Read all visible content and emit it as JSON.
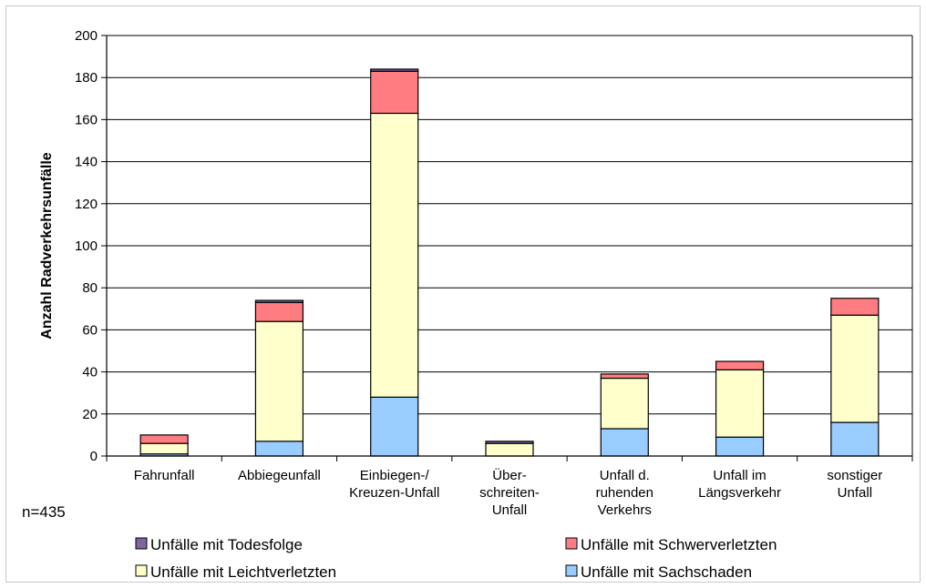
{
  "chart_data": {
    "type": "bar",
    "stacked": true,
    "title": "",
    "xlabel": "",
    "ylabel": "Anzahl Radverkehrsunfälle",
    "ylim": [
      0,
      200
    ],
    "yticks": [
      0,
      20,
      40,
      60,
      80,
      100,
      120,
      140,
      160,
      180,
      200
    ],
    "grid": true,
    "legend_position": "bottom",
    "categories": [
      [
        "Fahrunfall"
      ],
      [
        "Abbiegeunfall"
      ],
      [
        "Einbiegen-/",
        "Kreuzen-Unfall"
      ],
      [
        "Über-",
        "schreiten-",
        "Unfall"
      ],
      [
        "Unfall d.",
        "ruhenden",
        "Verkehrs"
      ],
      [
        "Unfall im",
        "Längsverkehr"
      ],
      [
        "sonstiger",
        "Unfall"
      ]
    ],
    "series": [
      {
        "name": "Unfälle mit Sachschaden",
        "color": "#99ccff",
        "values": [
          1,
          7,
          28,
          0,
          13,
          9,
          16
        ]
      },
      {
        "name": "Unfälle mit Leichtverletzten",
        "color": "#ffffcc",
        "values": [
          5,
          57,
          135,
          6,
          24,
          32,
          51
        ]
      },
      {
        "name": "Unfälle mit Schwerverletzten",
        "color": "#ff7c80",
        "values": [
          4,
          9,
          20,
          0,
          2,
          4,
          8
        ]
      },
      {
        "name": "Unfälle mit Todesfolge",
        "color": "#8064a2",
        "values": [
          0,
          1,
          1,
          1,
          0,
          0,
          0
        ]
      }
    ]
  },
  "annotation": "n=435"
}
